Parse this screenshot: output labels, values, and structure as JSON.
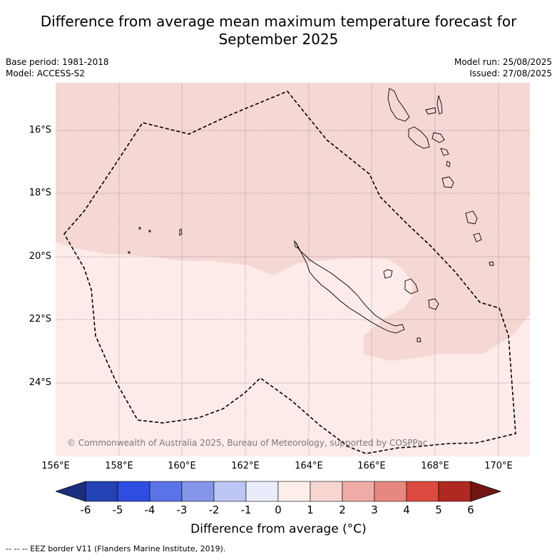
{
  "title": {
    "line1": "Difference from average mean maximum temperature forecast for",
    "line2": "September 2025"
  },
  "meta_left": {
    "base_period": "Base period: 1981-2018",
    "model": "Model: ACCESS-S2"
  },
  "meta_right": {
    "model_run": "Model run: 25/08/2025",
    "issued": "Issued: 27/08/2025"
  },
  "map": {
    "lat_labels": [
      "16°S",
      "18°S",
      "20°S",
      "22°S",
      "24°S"
    ],
    "lon_labels": [
      "156°E",
      "158°E",
      "160°E",
      "162°E",
      "164°E",
      "166°E",
      "168°E",
      "170°E"
    ],
    "copyright": "© Commonwealth of Australia 2025, Bureau of Meteorology, supported by COSPPac",
    "fill_colors": {
      "category_0_1": "#fcebe9",
      "category_1_2": "#f5d7d4"
    }
  },
  "colorbar": {
    "title": "Difference from average (°C)",
    "tick_labels": [
      "-6",
      "-5",
      "-4",
      "-3",
      "-2",
      "-1",
      "0",
      "1",
      "2",
      "3",
      "4",
      "5",
      "6"
    ],
    "colors": [
      "#1c2e80",
      "#2442b3",
      "#2f4de0",
      "#5a73e6",
      "#8596ea",
      "#bcc5f3",
      "#e9edfb",
      "#fdeeea",
      "#f7d5d0",
      "#efaca7",
      "#e78880",
      "#dc4a40",
      "#b02822",
      "#731612"
    ]
  },
  "footer": "-- -- -- EEZ border V11 (Flanders Marine Institute, 2019)."
}
